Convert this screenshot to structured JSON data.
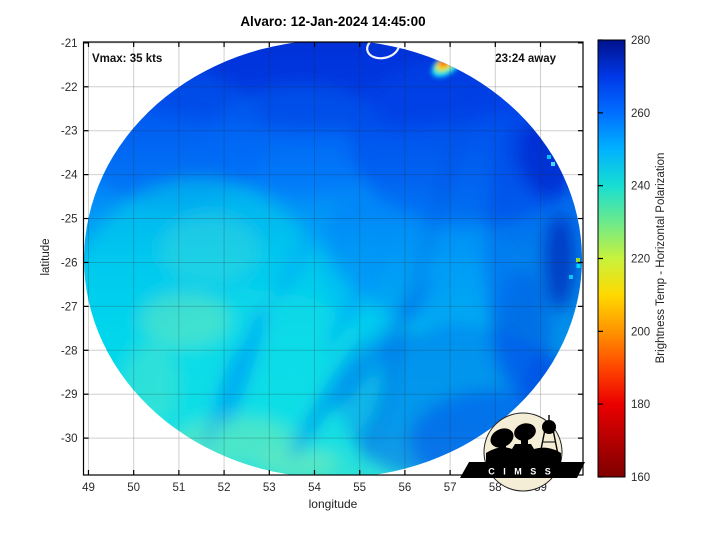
{
  "figure": {
    "title": "Alvaro: 12-Jan-2024 14:45:00",
    "annotation_left": "Vmax: 35 kts",
    "annotation_right": "23:24 away",
    "xlabel": "longitude",
    "ylabel": "latitude",
    "background_color": "#ffffff"
  },
  "logo": {
    "name": "CIMSS",
    "text": "C I M S S",
    "circle_color": "#f4eed6",
    "banner_color": "#000000",
    "letter_color": "#ffffff"
  },
  "chart_data": {
    "type": "heatmap",
    "title": "Alvaro: 12-Jan-2024 14:45:00",
    "subtitle_left": "Vmax: 35 kts",
    "subtitle_right": "23:24 away",
    "xlabel": "longitude",
    "ylabel": "latitude",
    "xlim": [
      48.89,
      59.94
    ],
    "ylim": [
      -30.84,
      -20.98
    ],
    "xticks": [
      49,
      50,
      51,
      52,
      53,
      54,
      55,
      56,
      57,
      58,
      59
    ],
    "yticks": [
      -21,
      -22,
      -23,
      -24,
      -25,
      -26,
      -27,
      -28,
      -29,
      -30
    ],
    "grid": true,
    "storm": {
      "name": "Alvaro",
      "datetime": "12-Jan-2024 14:45:00",
      "vmax_kts": 35,
      "time_offset": "23:24 away"
    },
    "colorbar": {
      "label": "Brightness Temp - Horizontal Polarization",
      "min": 160,
      "max": 280,
      "ticks": [
        160,
        180,
        200,
        220,
        240,
        260,
        280
      ],
      "orientation": "vertical",
      "colormap": "jet-reversed (low=dark red, high=dark navy blue)",
      "gradient": [
        "#7f0000",
        "#b40000",
        "#eb0000",
        "#ff4600",
        "#ff9400",
        "#ffd900",
        "#c8f23c",
        "#6ce98c",
        "#17ded2",
        "#00b2ff",
        "#006eff",
        "#0038e8",
        "#00128c"
      ]
    },
    "swath": {
      "shape": "circular microwave scan footprint",
      "center_lon": 54.4,
      "center_lat": -25.9,
      "radius_deg_lon": 5.5,
      "radius_deg_lat": 4.95,
      "regions_brightness_temp_K": [
        {
          "region": "north rim (lat -21 to -22.5)",
          "approx_value": 268
        },
        {
          "region": "east rim navy patches (lon 59-60)",
          "approx_value": 276
        },
        {
          "region": "upper-right interior",
          "approx_value": 262
        },
        {
          "region": "center",
          "approx_value": 252
        },
        {
          "region": "west / southwest cyan area",
          "approx_value": 240
        },
        {
          "region": "southwest pale-green patches",
          "approx_value": 228
        },
        {
          "region": "south-central cyan",
          "approx_value": 238
        },
        {
          "region": "southeast blue lobe",
          "approx_value": 258
        }
      ]
    },
    "features": {
      "warm_spot": {
        "lon": 56.8,
        "lat": -21.4,
        "approx_min_value": 190,
        "note": "small red/orange/yellow feature with cyan fringe on NE rim"
      },
      "center_contour": {
        "lon": 55.6,
        "lat": -21.1,
        "note": "white oval contour at top edge of swath"
      },
      "scan_seam": {
        "note": "faint diagonal seam from (57,-21.8) to (54.7,-30.5)"
      }
    }
  }
}
